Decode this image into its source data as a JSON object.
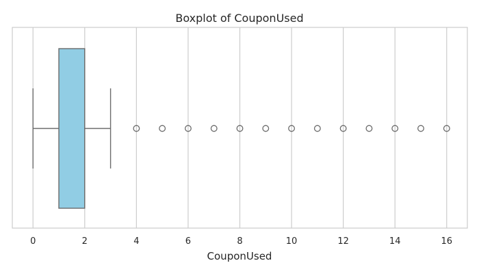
{
  "chart_data": {
    "type": "boxplot",
    "title": "Boxplot of CouponUsed",
    "xlabel": "CouponUsed",
    "ylabel": "",
    "orientation": "horizontal",
    "xlim": [
      -0.8,
      16.8
    ],
    "xticks": [
      0,
      2,
      4,
      6,
      8,
      10,
      12,
      14,
      16
    ],
    "grid": true,
    "box_color": "#91cde4",
    "line_color": "#6b6b6b",
    "box": {
      "whisker_low": 0,
      "q1": 1,
      "median": 2,
      "q3": 2,
      "whisker_high": 3
    },
    "outliers": [
      4,
      5,
      6,
      7,
      8,
      9,
      10,
      11,
      12,
      13,
      14,
      15,
      16
    ]
  }
}
